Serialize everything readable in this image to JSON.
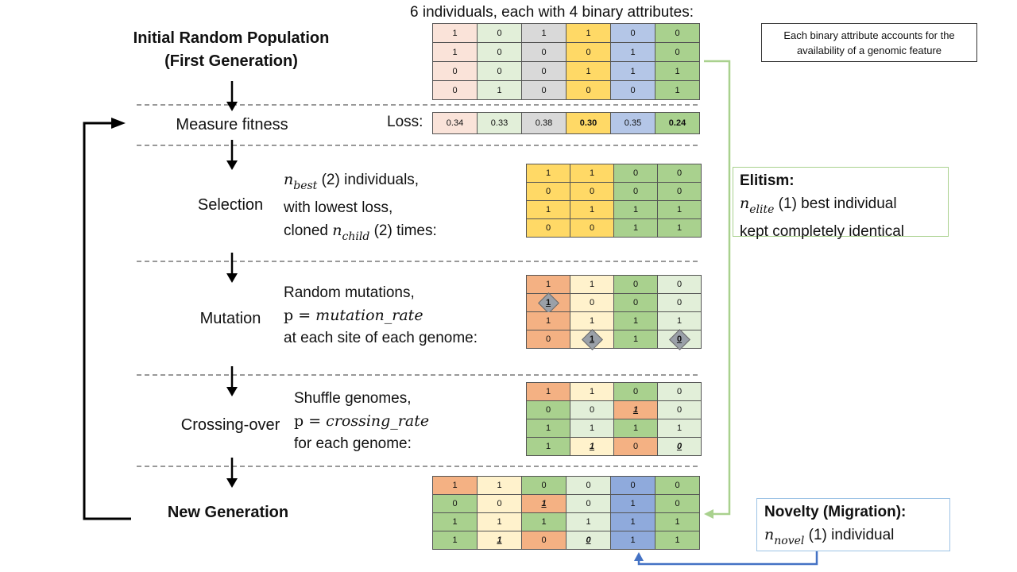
{
  "top_caption": "6 individuals, each with 4 binary attributes:",
  "note": "Each binary attribute accounts for the availability of a genomic feature",
  "stages": {
    "initial_line1": "Initial Random Population",
    "initial_line2": "(First Generation)",
    "fitness": "Measure fitness",
    "selection": "Selection",
    "mutation": "Mutation",
    "crossing": "Crossing-over",
    "new_gen": "New Generation"
  },
  "loss_label": "Loss:",
  "selection_desc": {
    "l1_sym": "n",
    "l1_sub": "best",
    "l1_rest": " (2) individuals,",
    "l2": "with lowest loss,",
    "l3_pre": "cloned ",
    "l3_sym": "n",
    "l3_sub": "child",
    "l3_rest": " (2) times:"
  },
  "mutation_desc": {
    "l1": "Random mutations,",
    "l2_p": "p = ",
    "l2_var": "mutation_rate",
    "l3": "at each site of each genome:"
  },
  "crossing_desc": {
    "l1": "Shuffle genomes,",
    "l2_p": "p = ",
    "l2_var": "crossing_rate",
    "l3": "for each genome:"
  },
  "elitism": {
    "title": "Elitism:",
    "sym": "n",
    "sub": "elite",
    "l1_rest": " (1) best individual",
    "l2": "kept completely identical"
  },
  "novelty": {
    "title": "Novelty (Migration):",
    "sym": "n",
    "sub": "novel",
    "rest": " (1) individual"
  },
  "colors": {
    "c1": "#fae3d9",
    "c2": "#e2efd9",
    "c3": "#d9d9d9",
    "c4": "#ffd966",
    "c5": "#b4c6e7",
    "c6": "#a9d18e",
    "orange": "#f4b183",
    "yellow": "#fff2cc",
    "green": "#a9d18e",
    "lightgreen": "#e2efd9",
    "blue": "#8faadc",
    "elitism_border": "#a9d18e",
    "novelty_border": "#9dc3e6",
    "arrow_green": "#a9d18e",
    "arrow_blue": "#4472c4"
  },
  "population": {
    "colors": [
      "c1",
      "c2",
      "c3",
      "c4",
      "c5",
      "c6"
    ],
    "rows": [
      [
        "1",
        "0",
        "1",
        "1",
        "0",
        "0"
      ],
      [
        "1",
        "0",
        "0",
        "0",
        "1",
        "0"
      ],
      [
        "0",
        "0",
        "0",
        "1",
        "1",
        "1"
      ],
      [
        "0",
        "1",
        "0",
        "0",
        "0",
        "1"
      ]
    ]
  },
  "loss": {
    "colors": [
      "c1",
      "c2",
      "c3",
      "c4",
      "c5",
      "c6"
    ],
    "values": [
      "0.34",
      "0.33",
      "0.38",
      "0.30",
      "0.35",
      "0.24"
    ],
    "bold": [
      false,
      false,
      false,
      true,
      false,
      true
    ]
  },
  "selection": {
    "colors": [
      "c4",
      "c4",
      "c6",
      "c6"
    ],
    "rows": [
      [
        "1",
        "1",
        "0",
        "0"
      ],
      [
        "0",
        "0",
        "0",
        "0"
      ],
      [
        "1",
        "1",
        "1",
        "1"
      ],
      [
        "0",
        "0",
        "1",
        "1"
      ]
    ]
  },
  "mutation": {
    "colors": [
      "orange",
      "yellow",
      "green",
      "lightgreen"
    ],
    "rows": [
      [
        "1",
        "1",
        "0",
        "0"
      ],
      [
        "1",
        "0",
        "0",
        "0"
      ],
      [
        "1",
        "1",
        "1",
        "1"
      ],
      [
        "0",
        "1",
        "1",
        "0"
      ]
    ],
    "mutated": [
      [
        1,
        0
      ],
      [
        3,
        1
      ],
      [
        3,
        3
      ]
    ]
  },
  "crossing": {
    "rows": [
      [
        "1",
        "1",
        "0",
        "0"
      ],
      [
        "0",
        "0",
        "1",
        "0"
      ],
      [
        "1",
        "1",
        "1",
        "1"
      ],
      [
        "1",
        "1",
        "0",
        "0"
      ]
    ],
    "colors": [
      [
        "orange",
        "yellow",
        "green",
        "lightgreen"
      ],
      [
        "green",
        "lightgreen",
        "orange",
        "lightgreen"
      ],
      [
        "green",
        "lightgreen",
        "green",
        "lightgreen"
      ],
      [
        "green",
        "yellow",
        "orange",
        "lightgreen"
      ]
    ],
    "italic": [
      [
        1,
        2
      ],
      [
        3,
        1
      ],
      [
        3,
        3
      ]
    ]
  },
  "new_generation": {
    "rows": [
      [
        "1",
        "1",
        "0",
        "0",
        "0",
        "0"
      ],
      [
        "0",
        "0",
        "1",
        "0",
        "1",
        "0"
      ],
      [
        "1",
        "1",
        "1",
        "1",
        "1",
        "1"
      ],
      [
        "1",
        "1",
        "0",
        "0",
        "1",
        "1"
      ]
    ],
    "colors": [
      [
        "orange",
        "yellow",
        "green",
        "lightgreen",
        "blue",
        "green"
      ],
      [
        "green",
        "yellow",
        "orange",
        "lightgreen",
        "blue",
        "green"
      ],
      [
        "green",
        "yellow",
        "green",
        "lightgreen",
        "blue",
        "green"
      ],
      [
        "green",
        "yellow",
        "orange",
        "lightgreen",
        "blue",
        "green"
      ]
    ],
    "italic": [
      [
        1,
        2
      ],
      [
        3,
        1
      ],
      [
        3,
        3
      ]
    ]
  }
}
